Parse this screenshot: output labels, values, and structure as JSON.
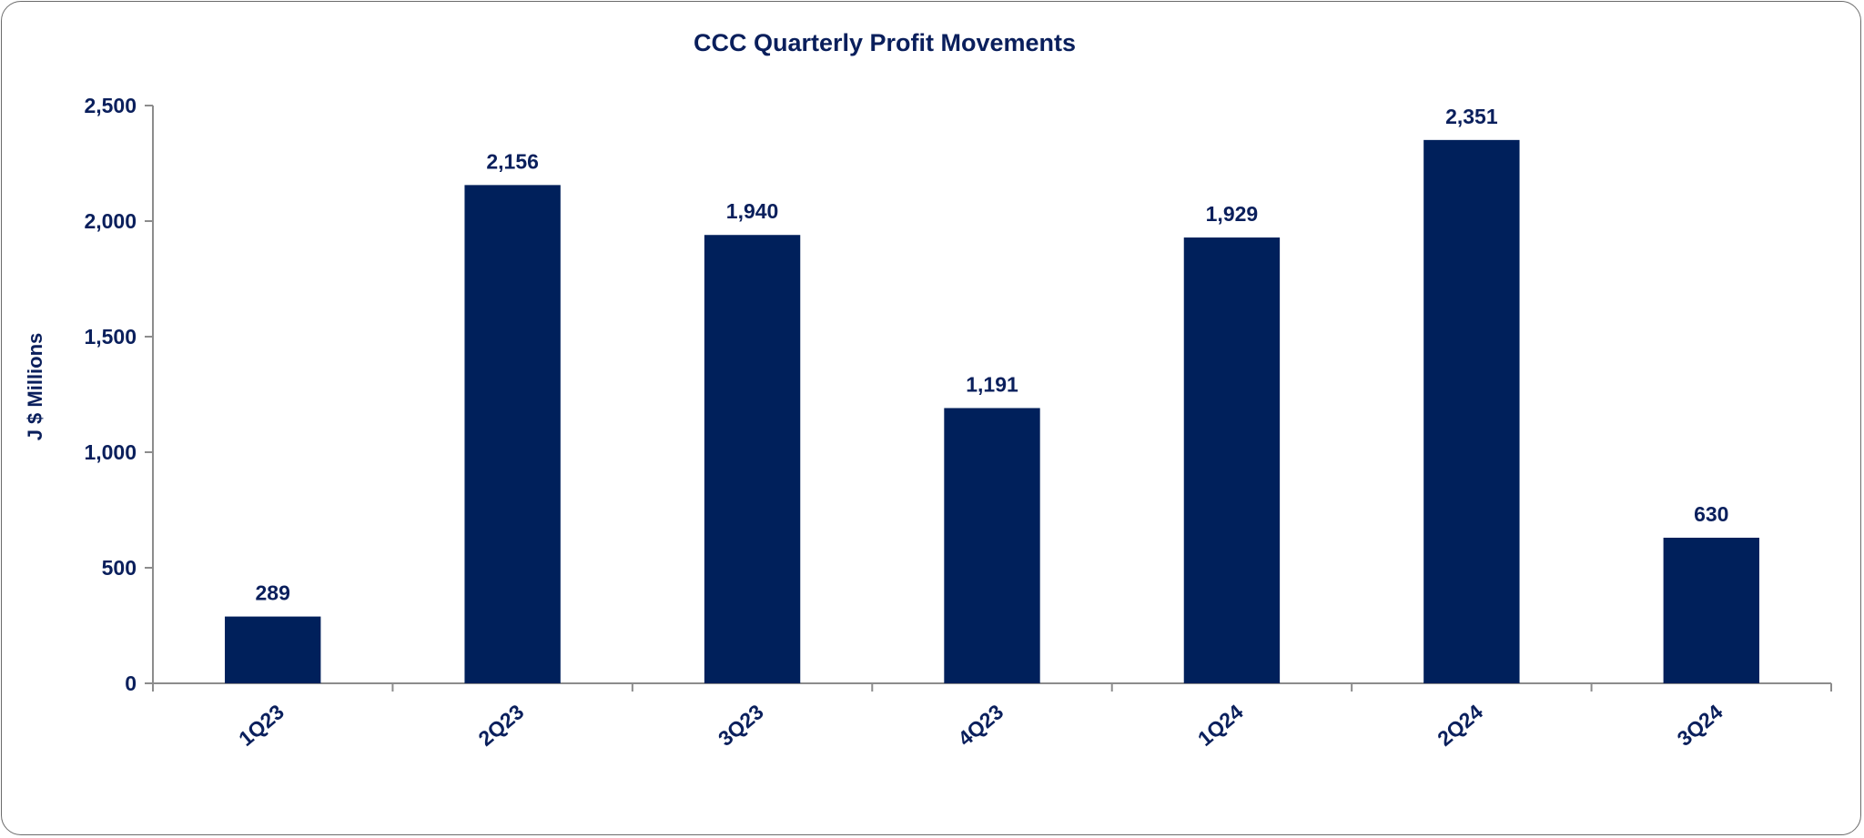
{
  "colors": {
    "bar": "#00205b",
    "text": "#0a1f5c",
    "axis": "#8c8c8c",
    "frame": "#6b6b6b"
  },
  "chart_data": {
    "type": "bar",
    "title": "CCC Quarterly Profit Movements",
    "xlabel": "",
    "ylabel": "J $ Millions",
    "categories": [
      "1Q23",
      "2Q23",
      "3Q23",
      "4Q23",
      "1Q24",
      "2Q24",
      "3Q24"
    ],
    "values": [
      289,
      2156,
      1940,
      1191,
      1929,
      2351,
      630
    ],
    "data_labels": [
      "289",
      "2,156",
      "1,940",
      "1,191",
      "1,929",
      "2,351",
      "630"
    ],
    "ylim": [
      0,
      2500
    ],
    "yticks": [
      0,
      500,
      1000,
      1500,
      2000,
      2500
    ],
    "ytick_labels": [
      "0",
      "500",
      "1,000",
      "1,500",
      "2,000",
      "2,500"
    ],
    "grid": false,
    "legend": "none"
  }
}
